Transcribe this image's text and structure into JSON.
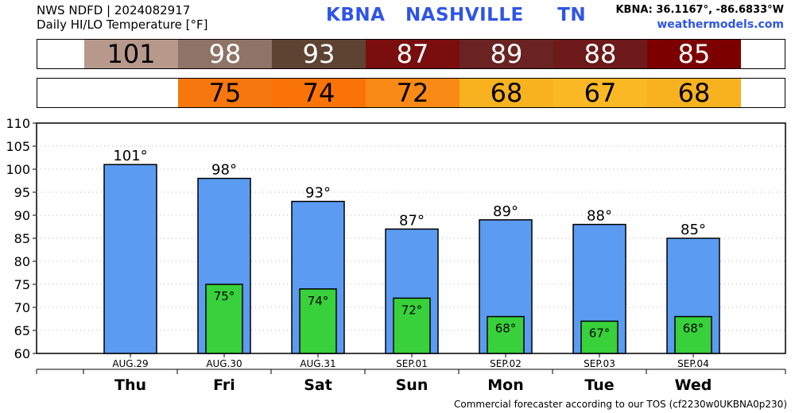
{
  "header": {
    "source_line": "NWS NDFD | 2024082917",
    "subtitle": "Daily HI/LO Temperature [°F]",
    "station": "KBNA",
    "city": "NASHVILLE",
    "state": "TN",
    "coords": "KBNA: 36.1167°, -86.6833°W",
    "site": "weathermodels.com"
  },
  "strips": {
    "hi": [
      {
        "value": "101",
        "bg": "#b7998c",
        "fg": "#000000"
      },
      {
        "value": "98",
        "bg": "#8e7366",
        "fg": "#ffffff"
      },
      {
        "value": "93",
        "bg": "#5e4333",
        "fg": "#ffffff"
      },
      {
        "value": "87",
        "bg": "#7a0d0d",
        "fg": "#ffffff"
      },
      {
        "value": "89",
        "bg": "#6a2222",
        "fg": "#ffffff"
      },
      {
        "value": "88",
        "bg": "#6e1a1a",
        "fg": "#ffffff"
      },
      {
        "value": "85",
        "bg": "#7c0000",
        "fg": "#ffffff"
      }
    ],
    "lo": [
      {
        "value": "",
        "bg": "#ffffff",
        "fg": "#000000"
      },
      {
        "value": "75",
        "bg": "#f7770f",
        "fg": "#000000"
      },
      {
        "value": "74",
        "bg": "#f97307",
        "fg": "#000000"
      },
      {
        "value": "72",
        "bg": "#f98a15",
        "fg": "#000000"
      },
      {
        "value": "68",
        "bg": "#f9b21f",
        "fg": "#000000"
      },
      {
        "value": "67",
        "bg": "#fab825",
        "fg": "#000000"
      },
      {
        "value": "68",
        "bg": "#f9b21f",
        "fg": "#000000"
      }
    ]
  },
  "chart_data": {
    "type": "bar",
    "categories": [
      "Thu",
      "Fri",
      "Sat",
      "Sun",
      "Mon",
      "Tue",
      "Wed"
    ],
    "dates": [
      "AUG.29",
      "AUG.30",
      "AUG.31",
      "SEP.01",
      "SEP.02",
      "SEP.03",
      "SEP.04"
    ],
    "series": [
      {
        "values": [
          101,
          98,
          93,
          87,
          89,
          88,
          85
        ],
        "labels": [
          "101°",
          "98°",
          "93°",
          "87°",
          "89°",
          "88°",
          "85°"
        ],
        "color": "#5b9cf2"
      },
      {
        "values": [
          null,
          75,
          74,
          72,
          68,
          67,
          68
        ],
        "labels": [
          "",
          "75°",
          "74°",
          "72°",
          "68°",
          "67°",
          "68°"
        ],
        "color": "#38d13b"
      }
    ],
    "ylim": [
      60,
      110
    ],
    "yticks": [
      60,
      65,
      70,
      75,
      80,
      85,
      90,
      95,
      100,
      105,
      110
    ],
    "grid": true
  },
  "footer": "Commercial forecaster according to our TOS (cf2230w0UKBNA0p230)"
}
